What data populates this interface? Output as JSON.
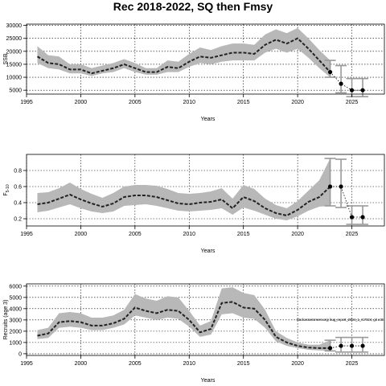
{
  "title": "Rec 2018-2022, SQ then Fmsy",
  "chart_data": [
    {
      "type": "line",
      "xlabel": "Years",
      "ylabel": "SSB",
      "xlim": [
        1995,
        2028
      ],
      "ylim": [
        3500,
        30500
      ],
      "xticks": [
        1995,
        2000,
        2005,
        2010,
        2015,
        2020,
        2025
      ],
      "yticks": [
        5000,
        10000,
        15000,
        20000,
        25000,
        30000
      ],
      "xtick_labels": [
        "1995",
        "2000",
        "2005",
        "2010",
        "2015",
        "2020",
        "2025"
      ],
      "ytick_labels": [
        "5000",
        "10000",
        "15000",
        "20000",
        "25000",
        "30000"
      ],
      "grid": true,
      "series": [
        {
          "x": [
            1996,
            1997,
            1998,
            1999,
            2000,
            2001,
            2002,
            2003,
            2004,
            2005,
            2006,
            2007,
            2008,
            2009,
            2010,
            2011,
            2012,
            2013,
            2014,
            2015,
            2016,
            2017,
            2018,
            2019,
            2020,
            2021,
            2022,
            2023
          ],
          "median": [
            18000,
            15500,
            15000,
            13000,
            13000,
            11500,
            12500,
            13500,
            15000,
            13500,
            12000,
            12000,
            14000,
            13500,
            16000,
            18000,
            17500,
            18500,
            19500,
            19500,
            19000,
            22500,
            24500,
            23000,
            25000,
            21000,
            16500,
            12000
          ],
          "lower": [
            15500,
            13500,
            13000,
            11500,
            11500,
            10500,
            11500,
            12000,
            13500,
            12000,
            11000,
            11000,
            12000,
            12000,
            14000,
            15500,
            15000,
            16000,
            16500,
            16500,
            16500,
            19500,
            21000,
            19500,
            21000,
            17500,
            13500,
            10000
          ],
          "upper": [
            22000,
            18500,
            18000,
            15000,
            15000,
            13500,
            14500,
            15500,
            17000,
            15500,
            13500,
            13500,
            16500,
            16000,
            19000,
            21500,
            20500,
            22000,
            23000,
            23000,
            22500,
            26500,
            28500,
            27000,
            29000,
            25000,
            20500,
            16500
          ]
        }
      ],
      "projection": {
        "x": [
          2024,
          2025,
          2026
        ],
        "median": [
          7500,
          5000,
          5000
        ],
        "lower": [
          4000,
          2500,
          2500
        ],
        "upper": [
          14500,
          9500,
          9500
        ]
      }
    },
    {
      "type": "line",
      "xlabel": "Years",
      "ylabel": "F",
      "ylabel_subscript": "5-10",
      "xlim": [
        1995,
        2028
      ],
      "ylim": [
        0.11,
        1.0
      ],
      "xticks": [
        1995,
        2000,
        2005,
        2010,
        2015,
        2020,
        2025
      ],
      "yticks": [
        0.2,
        0.4,
        0.6,
        0.8
      ],
      "xtick_labels": [
        "1995",
        "2000",
        "2005",
        "2010",
        "2015",
        "2020",
        "2025"
      ],
      "ytick_labels": [
        "0.2",
        "0.4",
        "0.6",
        "0.8"
      ],
      "grid": true,
      "series": [
        {
          "x": [
            1996,
            1997,
            1998,
            1999,
            2000,
            2001,
            2002,
            2003,
            2004,
            2005,
            2006,
            2007,
            2008,
            2009,
            2010,
            2011,
            2012,
            2013,
            2014,
            2015,
            2016,
            2017,
            2018,
            2019,
            2020,
            2021,
            2022,
            2023
          ],
          "median": [
            0.38,
            0.4,
            0.45,
            0.5,
            0.44,
            0.39,
            0.35,
            0.39,
            0.47,
            0.49,
            0.49,
            0.47,
            0.43,
            0.39,
            0.38,
            0.4,
            0.41,
            0.44,
            0.33,
            0.47,
            0.42,
            0.33,
            0.27,
            0.24,
            0.31,
            0.41,
            0.47,
            0.6
          ],
          "lower": [
            0.28,
            0.3,
            0.34,
            0.38,
            0.33,
            0.29,
            0.27,
            0.29,
            0.36,
            0.37,
            0.38,
            0.36,
            0.33,
            0.3,
            0.29,
            0.3,
            0.31,
            0.33,
            0.25,
            0.34,
            0.3,
            0.25,
            0.2,
            0.18,
            0.23,
            0.3,
            0.35,
            0.36
          ],
          "upper": [
            0.52,
            0.53,
            0.58,
            0.65,
            0.57,
            0.51,
            0.46,
            0.52,
            0.6,
            0.62,
            0.62,
            0.61,
            0.57,
            0.52,
            0.51,
            0.52,
            0.54,
            0.58,
            0.45,
            0.62,
            0.57,
            0.45,
            0.37,
            0.33,
            0.42,
            0.55,
            0.68,
            0.95
          ]
        }
      ],
      "projection": {
        "x": [
          2024,
          2025,
          2026
        ],
        "median": [
          0.6,
          0.22,
          0.22
        ],
        "lower": [
          0.34,
          0.13,
          0.13
        ],
        "upper": [
          0.94,
          0.36,
          0.36
        ]
      }
    },
    {
      "type": "line",
      "xlabel": "Years",
      "ylabel": "Recruits (age 3)",
      "xlim": [
        1995,
        2028
      ],
      "ylim": [
        -150,
        6200
      ],
      "xticks": [
        1995,
        2000,
        2005,
        2010,
        2015,
        2020,
        2025
      ],
      "yticks": [
        0,
        1000,
        2000,
        3000,
        4000,
        5000,
        6000
      ],
      "xtick_labels": [
        "1995",
        "2000",
        "2005",
        "2010",
        "2015",
        "2020",
        "2025"
      ],
      "ytick_labels": [
        "0",
        "1000",
        "2000",
        "3000",
        "4000",
        "5000",
        "6000"
      ],
      "grid": true,
      "series": [
        {
          "x": [
            1996,
            1997,
            1998,
            1999,
            2000,
            2001,
            2002,
            2003,
            2004,
            2005,
            2006,
            2007,
            2008,
            2009,
            2010,
            2011,
            2012,
            2013,
            2014,
            2015,
            2016,
            2017,
            2018,
            2019,
            2020,
            2021,
            2022,
            2023
          ],
          "median": [
            1600,
            1800,
            2800,
            2900,
            2800,
            2500,
            2500,
            2700,
            3100,
            4100,
            3800,
            3600,
            3900,
            3800,
            3000,
            1900,
            2200,
            4500,
            4600,
            4100,
            4000,
            3000,
            1500,
            1000,
            700,
            550,
            500,
            500
          ],
          "lower": [
            1300,
            1400,
            2300,
            2400,
            2300,
            2100,
            2100,
            2300,
            2600,
            3400,
            3200,
            3000,
            3200,
            3100,
            2400,
            1500,
            1700,
            3500,
            3600,
            3200,
            3100,
            2300,
            1100,
            700,
            500,
            350,
            300,
            250
          ],
          "upper": [
            2100,
            2300,
            3600,
            3700,
            3600,
            3200,
            3200,
            3400,
            3900,
            5300,
            4900,
            4700,
            5100,
            5000,
            3800,
            2500,
            2900,
            5800,
            5900,
            5400,
            5200,
            3900,
            2000,
            1400,
            1000,
            800,
            800,
            1200
          ]
        }
      ],
      "projection": {
        "x": [
          2024,
          2025,
          2026
        ],
        "median": [
          700,
          700,
          700
        ],
        "lower": [
          150,
          150,
          150
        ],
        "upper": [
          1450,
          1450,
          1450
        ]
      },
      "annotation": "stockassessment.org; bug_report_2024_1_r17024; git e36"
    }
  ]
}
